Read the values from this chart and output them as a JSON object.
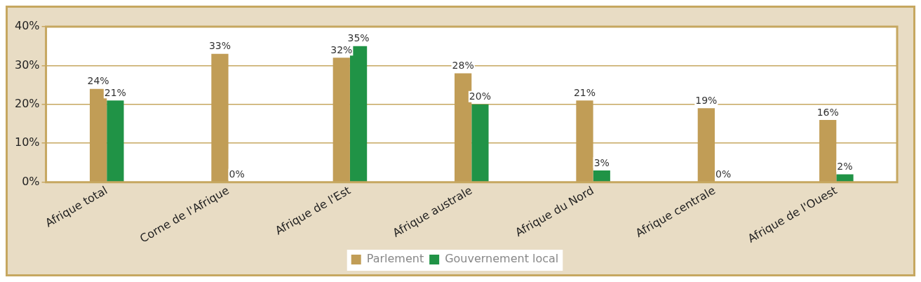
{
  "chart_data": {
    "type": "bar",
    "categories": [
      "Afrique total",
      "Corne de l'Afrique",
      "Afrique de l'Est",
      "Afrique australe",
      "Afrique du Nord",
      "Afrique centrale",
      "Afrique de l'Ouest"
    ],
    "series": [
      {
        "name": "Parlement",
        "color": "#c19d56",
        "values": [
          24,
          33,
          32,
          28,
          21,
          19,
          16
        ]
      },
      {
        "name": "Gouvernement local",
        "color": "#209346",
        "values": [
          21,
          0,
          35,
          20,
          3,
          0,
          2
        ]
      }
    ],
    "value_labels": [
      [
        "24%",
        "33%",
        "32%",
        "28%",
        "21%",
        "19%",
        "16%"
      ],
      [
        "21%",
        "0%",
        "35%",
        "20%",
        "3%",
        "0%",
        "2%"
      ]
    ],
    "ylim": [
      0,
      40
    ],
    "yticks": [
      {
        "value": 0,
        "label": "0%"
      },
      {
        "value": 10,
        "label": "10%"
      },
      {
        "value": 20,
        "label": "20%"
      },
      {
        "value": 30,
        "label": "30%"
      },
      {
        "value": 40,
        "label": "40%"
      }
    ],
    "grid": "y",
    "legend": "bottom"
  }
}
